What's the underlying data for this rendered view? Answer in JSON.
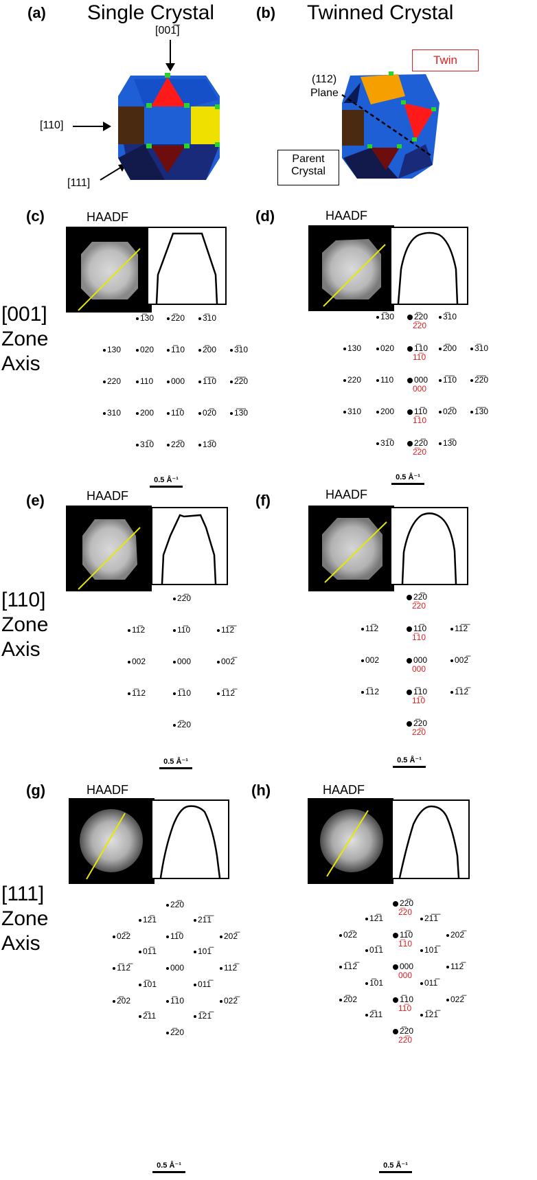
{
  "panels": {
    "a": "(a)",
    "b": "(b)",
    "c": "(c)",
    "d": "(d)",
    "e": "(e)",
    "f": "(f)",
    "g": "(g)",
    "h": "(h)"
  },
  "titles": {
    "single": "Single Crystal",
    "twinned": "Twinned Crystal"
  },
  "directions": {
    "d001": "[001̅]",
    "d110": "[110]",
    "d111": "[111]"
  },
  "labels": {
    "twin": "Twin",
    "plane_index": "(112)",
    "plane_word": "Plane",
    "parent": "Parent",
    "crystal": "Crystal"
  },
  "haadf": "HAADF",
  "scale": "0.5 Å⁻¹",
  "zones": {
    "z001": [
      "[001]",
      "Zone",
      "Axis"
    ],
    "z110": [
      "[110]",
      "Zone",
      "Axis"
    ],
    "z111": [
      "[111]",
      "Zone",
      "Axis"
    ]
  },
  "colors": {
    "blue": "#1f5fd6",
    "brown": "#4a2a10",
    "yellow": "#f0e000",
    "red": "#ff1a1a",
    "darkred": "#6e0d0d",
    "orange": "#f5a000",
    "navy": "#111a4a",
    "green": "#2bd42b",
    "twin_red": "#e02020",
    "line_yellow": "#e8e800"
  },
  "spots_c": [
    "1̅30",
    "2̅20",
    "3̅10",
    "130",
    "020",
    "1̅10",
    "2̅00",
    "3̅10",
    "220",
    "110",
    "000",
    "1̅1̅0",
    "2̅2̅0",
    "310",
    "200",
    "11̅0",
    "02̅0",
    "1̅3̅0",
    "31̅0",
    "22̅0",
    "13̅0"
  ],
  "spots_d": [
    "1̅30",
    "2̅20",
    "3̅10",
    "130",
    "020",
    "1̅10",
    "2̅00",
    "3̅10",
    "220",
    "110",
    "000",
    "1̅1̅0",
    "2̅2̅0",
    "310",
    "200",
    "11̅0",
    "02̅0",
    "1̅3̅0",
    "31̅0",
    "22̅0",
    "13̅0"
  ],
  "twin_d": [
    "2̅20",
    "11̅0",
    "000",
    "1̅10",
    "2̅20"
  ],
  "spots_e": [
    "22̅0",
    "11̅2",
    "11̅0",
    "11̅2̅",
    "002",
    "000",
    "002̅",
    "1̅12",
    "1̅10",
    "1̅12̅",
    "2̅20"
  ],
  "spots_f": [
    "22̅0",
    "11̅2",
    "11̅0",
    "11̅2̅",
    "002",
    "000",
    "002̅",
    "1̅12",
    "1̅10",
    "1̅12̅",
    "2̅20"
  ],
  "twin_f": [
    "2̅20",
    "1̅10",
    "000",
    "11̅0",
    "22̅0"
  ],
  "spots_g": [
    "22̅0",
    "12̅1",
    "21̅1̅",
    "02̅2",
    "11̅0",
    "202̅",
    "01̅1",
    "101̅",
    "1̅12̅",
    "000",
    "112̅",
    "1̅01",
    "011̅",
    "2̅02",
    "1̅10",
    "022̅",
    "2̅11",
    "1̅21̅",
    "2̅20"
  ],
  "spots_h": [
    "22̅0",
    "12̅1",
    "21̅1̅",
    "02̅2",
    "11̅0",
    "202̅",
    "01̅1",
    "101̅",
    "1̅12̅",
    "000",
    "112̅",
    "1̅01",
    "011̅",
    "2̅02",
    "1̅10",
    "022̅",
    "2̅11",
    "1̅21̅",
    "2̅20"
  ],
  "twin_h": [
    "2̅20",
    "1̅10",
    "000",
    "11̅0",
    "22̅0"
  ]
}
